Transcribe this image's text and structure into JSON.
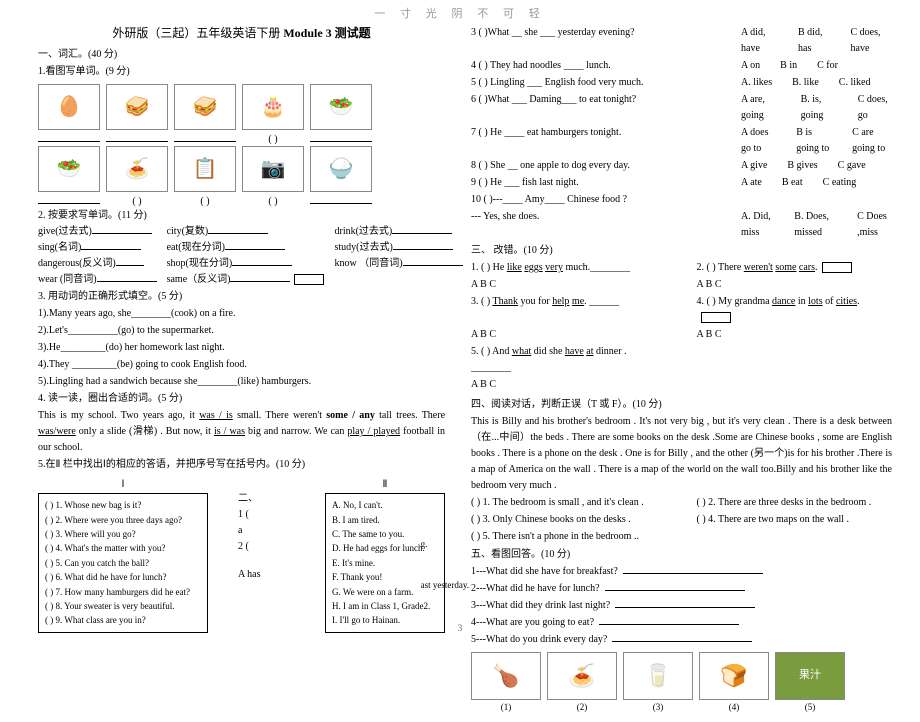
{
  "watermark": "一 寸 光 阴 不 可 轻",
  "title_prefix": "外研版（三起）五年级英语下册 ",
  "title_bold": "Module 3 测试题",
  "left": {
    "s1": "一、词汇。(40 分)",
    "s1_1": "1.看图写单词。(9 分)",
    "s1_2": "2. 按要求写单词。(11 分)",
    "words": [
      [
        "give(过去式)",
        "city(复数)",
        "drink(过去式)"
      ],
      [
        "sing(名词)",
        "eat(现在分词)",
        "study(过去式)"
      ],
      [
        "dangerous(反义词)",
        "shop(现在分词)",
        "know （同音词)"
      ],
      [
        "wear (同音词)",
        "same（反义词)",
        ""
      ]
    ],
    "s1_3": "3. 用动词的正确形式填空。(5 分)",
    "fill": [
      "1).Many years ago, she________(cook) on a fire.",
      "2).Let's__________(go) to the supermarket.",
      "3).He_________(do) her homework last night.",
      "4).They _________(be) going to cook English food.",
      "5).Lingling had a sandwich because she________(like) hamburgers."
    ],
    "s1_4": "4. 读一读，圈出合适的词。(5 分)",
    "para": "    This is my school. Two years ago, it <u>was / is</u> small. There weren't <b>some / any</b> tall trees. There <u>was/were</u> only a slide (滑梯) .   But now, it <u>is / was</u> big and narrow. We can <u>play / played</u> football in our school.",
    "s1_5": "5.在Ⅱ 栏中找出Ⅰ的相应的答语，并把序号写在括号内。(10 分)",
    "colI_title": "Ⅰ",
    "colI": [
      "(      ) 1. Whose new bag is it?",
      "(      ) 2. Where were you three days ago?",
      "(      ) 3. Where will you go?",
      "(      ) 4. What's the matter with you?",
      "(      ) 5. Can you catch the ball?",
      "(      ) 6. What did he have for lunch?",
      "(      ) 7. How many hamburgers did he eat?",
      "(      ) 8. Your sweater is very beautiful.",
      "(      ) 9. What class are you in?"
    ],
    "mid": [
      "二、",
      "1 (",
      "a",
      "2 (",
      "A has"
    ],
    "colII_title": "Ⅱ",
    "colII": [
      "A. No, I can't.",
      "B. I am tired.",
      "C. The same to you.",
      "D. He had eggs for lunch.",
      "E. It's mine.",
      "F. Thank you!",
      "G. We were on a farm.",
      "H. I am in Class 1, Grade2.",
      "I. I'll go to Hainan."
    ],
    "cut_text": [
      "g.",
      "ast yesterday."
    ]
  },
  "right": {
    "choices": [
      {
        "q": "3 (     )What __ she ___ yesterday evening?",
        "a": "A did, have",
        "b": "B did, has",
        "c": "C does, have"
      },
      {
        "q": "4 (     ) They had noodles ____ lunch.",
        "a": "A   on",
        "b": "B in",
        "c": "C   for"
      },
      {
        "q": "5 (     ) Lingling ___  English food very much.",
        "a": "A. likes",
        "b": "B. like",
        "c": "C. liked"
      },
      {
        "q": "6 (     )What ___ Daming___ to eat tonight?",
        "a": "A are, going",
        "b": "B. is, going",
        "c": "C does, go"
      },
      {
        "q": "7 (     ) He ____ eat hamburgers tonight.",
        "a": "A does go to",
        "b": "B is going to",
        "c": "C are going to"
      },
      {
        "q": "8 (     ) She __ one apple to dog every day.",
        "a": "A give",
        "b": "B gives",
        "c": "C gave"
      },
      {
        "q": "9 (     ) He ___ fish last night.",
        "a": "A ate",
        "b": "B eat",
        "c": "C eating"
      },
      {
        "q": "10 (     )---____ Amy____ Chinese food ?",
        "a": "",
        "b": "",
        "c": ""
      }
    ],
    "q10_line2": "         --- Yes, she does.",
    "q10_opts": {
      "a": "A. Did, miss",
      "b": "B. Does, missed",
      "c": "C Does ,miss"
    },
    "s3": "三、 改错。(10 分)",
    "err": [
      {
        "l": "1. (      ) He <u>like</u> <u>eggs</u> <u>very</u> much.________",
        "r": "2. (      ) There <u>weren't</u> <u>some</u> <u>cars</u>."
      },
      {
        "l": "                    A     B      C",
        "r": "                       A          B        C"
      },
      {
        "l": "3. (     ) <u>Thank</u> you for <u>help</u> <u>me</u>.  ______",
        "r": "4. (     ) My grandma <u>dance</u> in <u>lots</u> of <u>cities</u>."
      },
      {
        "l": "               A                B     C",
        "r": "                              A         B         C"
      },
      {
        "l": "5. (     ) And <u>what</u> did she <u>have</u> <u>at</u> dinner . ________",
        "r": ""
      },
      {
        "l": "                  A                B     C",
        "r": ""
      }
    ],
    "s4": "四、阅读对话，判断正误（T 或 F）。(10 分)",
    "passage": "    This is Billy and his brother's bedroom . It's not very big , but it's very clean . There is a desk between （在...中间）the beds . There are some books on the desk .Some are Chinese books , some are English books . There is a phone   on the desk . One is for Billy , and the other (另一个)is for his brother .There is a map of America on the wall . There is a map of the world on the wall too.Billy and his brother like the bedroom very much .",
    "tf": [
      {
        "l": "(      ) 1. The bedroom is small , and it's clean .",
        "r": "(      ) 2. There are three desks in the bedroom ."
      },
      {
        "l": "(      ) 3. Only Chinese books on the desks .",
        "r": "(      ) 4. There are two maps on the wall ."
      },
      {
        "l": "(      ) 5. There isn't a phone in the bedroom ..",
        "r": ""
      }
    ],
    "s5": "五、看图回答。(10 分)",
    "qs": [
      "1---What did she have for breakfast?",
      "2---What did he have for lunch?",
      "3---What did they drink last night?",
      "4---What are you going to eat?",
      "5---What do you drink every day?"
    ],
    "caps": [
      "(1)",
      "(2)",
      "(3)",
      "(4)",
      "(5)"
    ]
  },
  "icons_row1": [
    "🥚",
    "🥪",
    "🥪",
    "🎂",
    "🥗"
  ],
  "icons_row2": [
    "🥗",
    "🍝",
    "📋",
    "📷",
    "🍚"
  ],
  "icons_bottom": [
    "🍗",
    "🍝",
    "🥛",
    "🍞",
    "🍵"
  ],
  "page_num": "3"
}
